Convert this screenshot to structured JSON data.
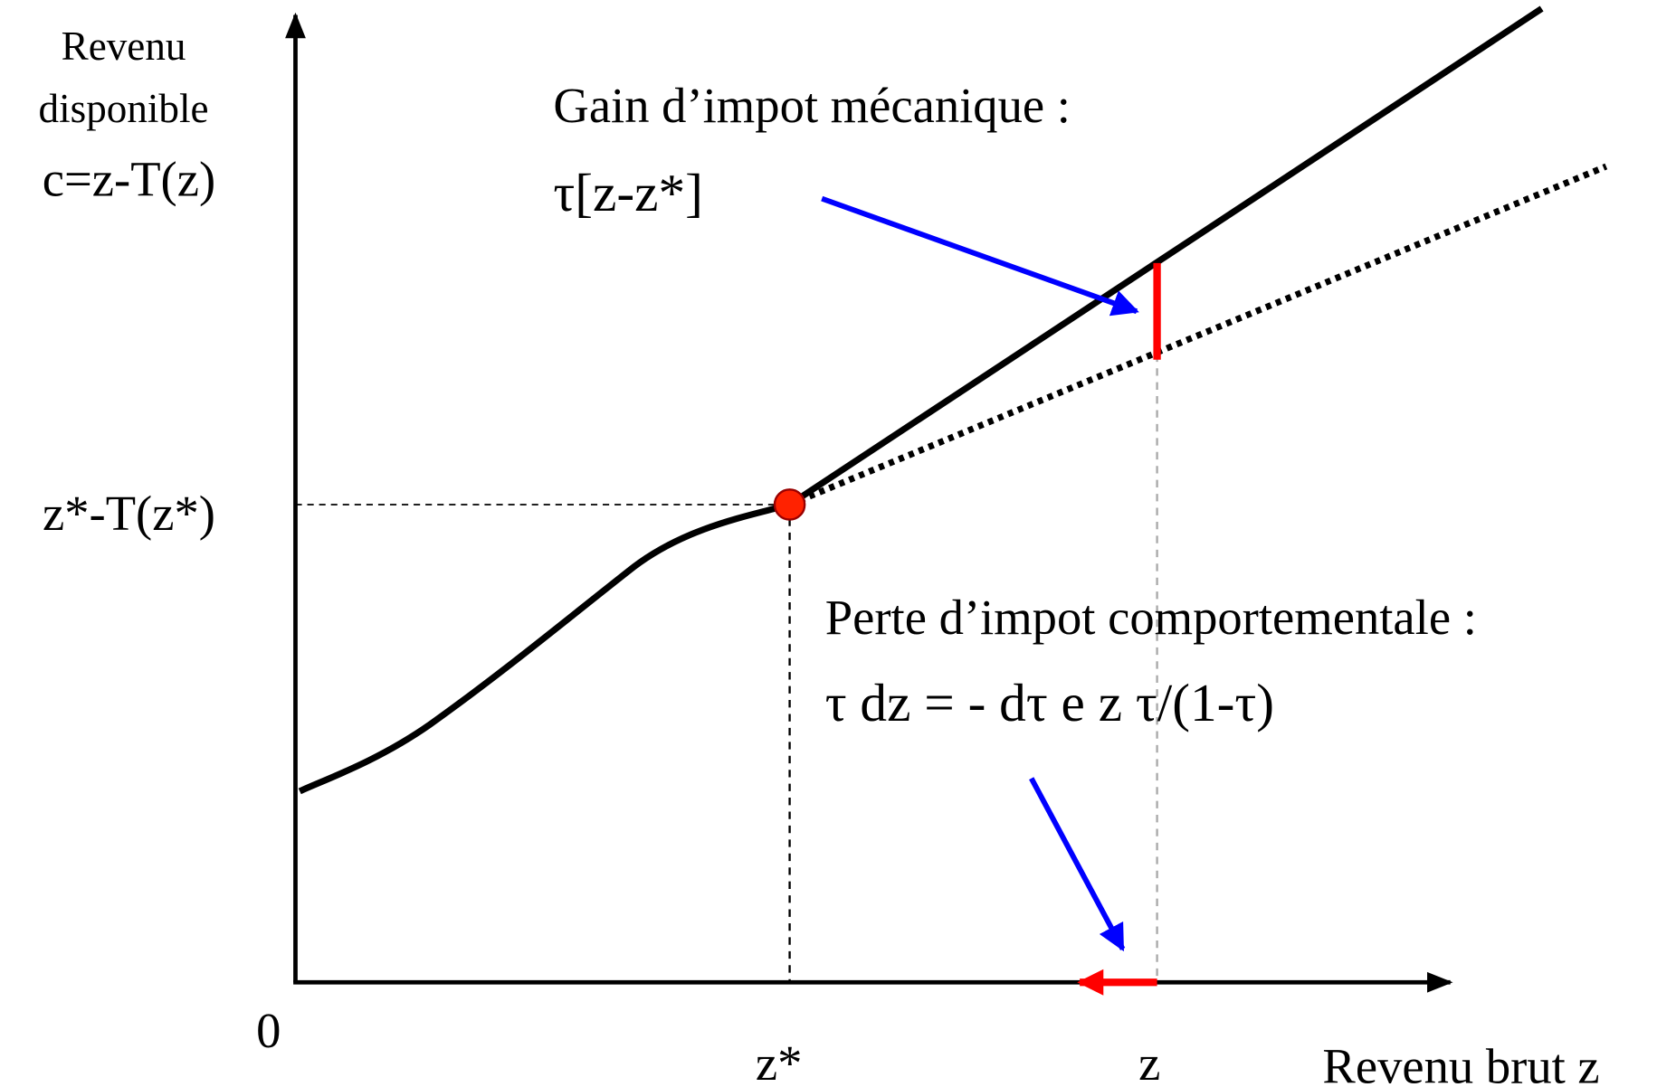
{
  "axes": {
    "y_label": [
      "Revenu",
      "disponible",
      "c=z-T(z)"
    ],
    "y_tick": "z*-T(z*)",
    "origin": "0",
    "x_ticks": [
      "z*",
      "z"
    ],
    "x_label": "Revenu brut z"
  },
  "annotations": [
    {
      "title": "Gain d’impot mécanique :",
      "formula": "τ[z-z*]"
    },
    {
      "title": "Perte d’impot comportementale :",
      "formula": "τ dz = - dτ e z τ/(1-τ)"
    }
  ]
}
